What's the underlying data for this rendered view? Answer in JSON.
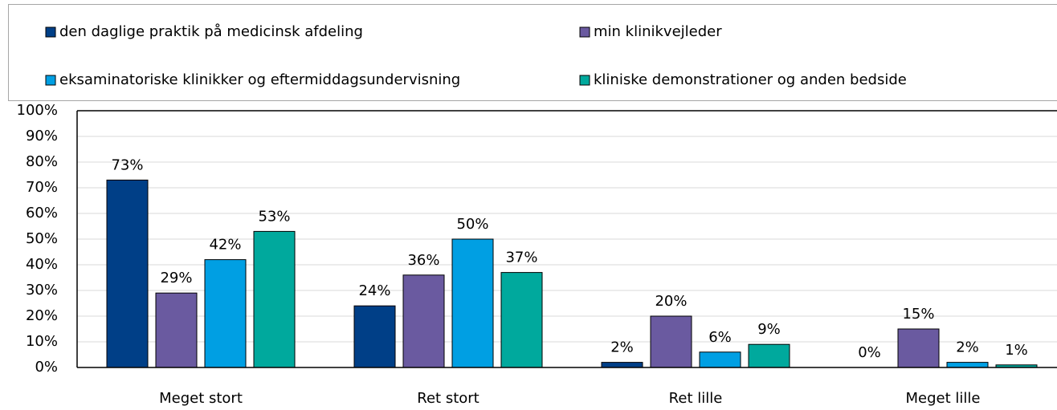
{
  "chart_data": {
    "type": "bar",
    "categories": [
      "Meget stort",
      "Ret stort",
      "Ret lille",
      "Meget lille"
    ],
    "series": [
      {
        "name": "den daglige praktik på medicinsk afdeling",
        "color": "#003f87",
        "values": [
          73,
          24,
          2,
          0
        ],
        "value_labels": [
          "73%",
          "24%",
          "2%",
          "0%"
        ]
      },
      {
        "name": "min klinikvejleder",
        "color": "#6a5aa0",
        "values": [
          29,
          36,
          20,
          15
        ],
        "value_labels": [
          "29%",
          "36%",
          "20%",
          "15%"
        ]
      },
      {
        "name": "eksaminatoriske klinikker og eftermiddagsundervisning",
        "color": "#009fe3",
        "values": [
          42,
          50,
          6,
          2
        ],
        "value_labels": [
          "42%",
          "50%",
          "6%",
          "2%"
        ]
      },
      {
        "name": "kliniske demonstrationer og anden bedside",
        "color": "#00a99d",
        "values": [
          53,
          37,
          9,
          1
        ],
        "value_labels": [
          "53%",
          "37%",
          "9%",
          "1%"
        ]
      }
    ],
    "ylim": [
      0,
      100
    ],
    "yticks": [
      {
        "value": 0,
        "label": "0%"
      },
      {
        "value": 10,
        "label": "10%"
      },
      {
        "value": 20,
        "label": "20%"
      },
      {
        "value": 30,
        "label": "30%"
      },
      {
        "value": 40,
        "label": "40%"
      },
      {
        "value": 50,
        "label": "50%"
      },
      {
        "value": 60,
        "label": "60%"
      },
      {
        "value": 70,
        "label": "70%"
      },
      {
        "value": 80,
        "label": "80%"
      },
      {
        "value": 90,
        "label": "90%"
      },
      {
        "value": 100,
        "label": "100%"
      }
    ],
    "grid": true
  }
}
